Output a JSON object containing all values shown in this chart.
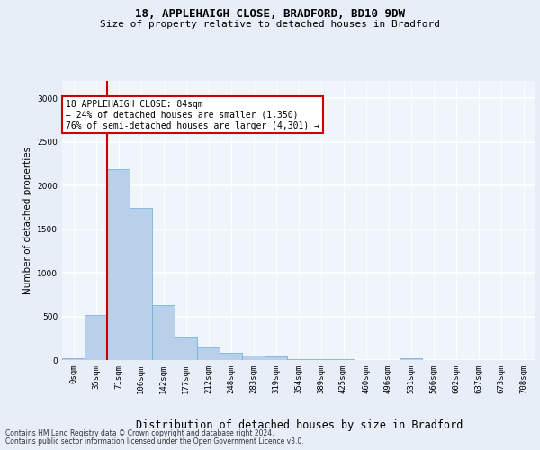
{
  "title1": "18, APPLEHAIGH CLOSE, BRADFORD, BD10 9DW",
  "title2": "Size of property relative to detached houses in Bradford",
  "xlabel": "Distribution of detached houses by size in Bradford",
  "ylabel": "Number of detached properties",
  "bar_labels": [
    "0sqm",
    "35sqm",
    "71sqm",
    "106sqm",
    "142sqm",
    "177sqm",
    "212sqm",
    "248sqm",
    "283sqm",
    "319sqm",
    "354sqm",
    "389sqm",
    "425sqm",
    "460sqm",
    "496sqm",
    "531sqm",
    "566sqm",
    "602sqm",
    "637sqm",
    "673sqm",
    "708sqm"
  ],
  "bar_values": [
    25,
    520,
    2190,
    1740,
    630,
    270,
    140,
    80,
    55,
    38,
    15,
    10,
    8,
    5,
    3,
    20,
    3,
    2,
    2,
    2,
    2
  ],
  "bar_color": "#b8d0ea",
  "bar_edge_color": "#6aaad4",
  "vline_x": 2,
  "vline_color": "#cc0000",
  "annotation_text": "18 APPLEHAIGH CLOSE: 84sqm\n← 24% of detached houses are smaller (1,350)\n76% of semi-detached houses are larger (4,301) →",
  "annotation_box_edgecolor": "#cc0000",
  "annotation_box_facecolor": "white",
  "ylim": [
    0,
    3200
  ],
  "yticks": [
    0,
    500,
    1000,
    1500,
    2000,
    2500,
    3000
  ],
  "footer1": "Contains HM Land Registry data © Crown copyright and database right 2024.",
  "footer2": "Contains public sector information licensed under the Open Government Licence v3.0.",
  "bg_color": "#e8eef7",
  "plot_bg_color": "#f0f5fb",
  "title1_fontsize": 9,
  "title2_fontsize": 8,
  "ylabel_fontsize": 7.5,
  "xlabel_fontsize": 8.5,
  "tick_fontsize": 6.5,
  "footer_fontsize": 5.5,
  "ann_fontsize": 7
}
